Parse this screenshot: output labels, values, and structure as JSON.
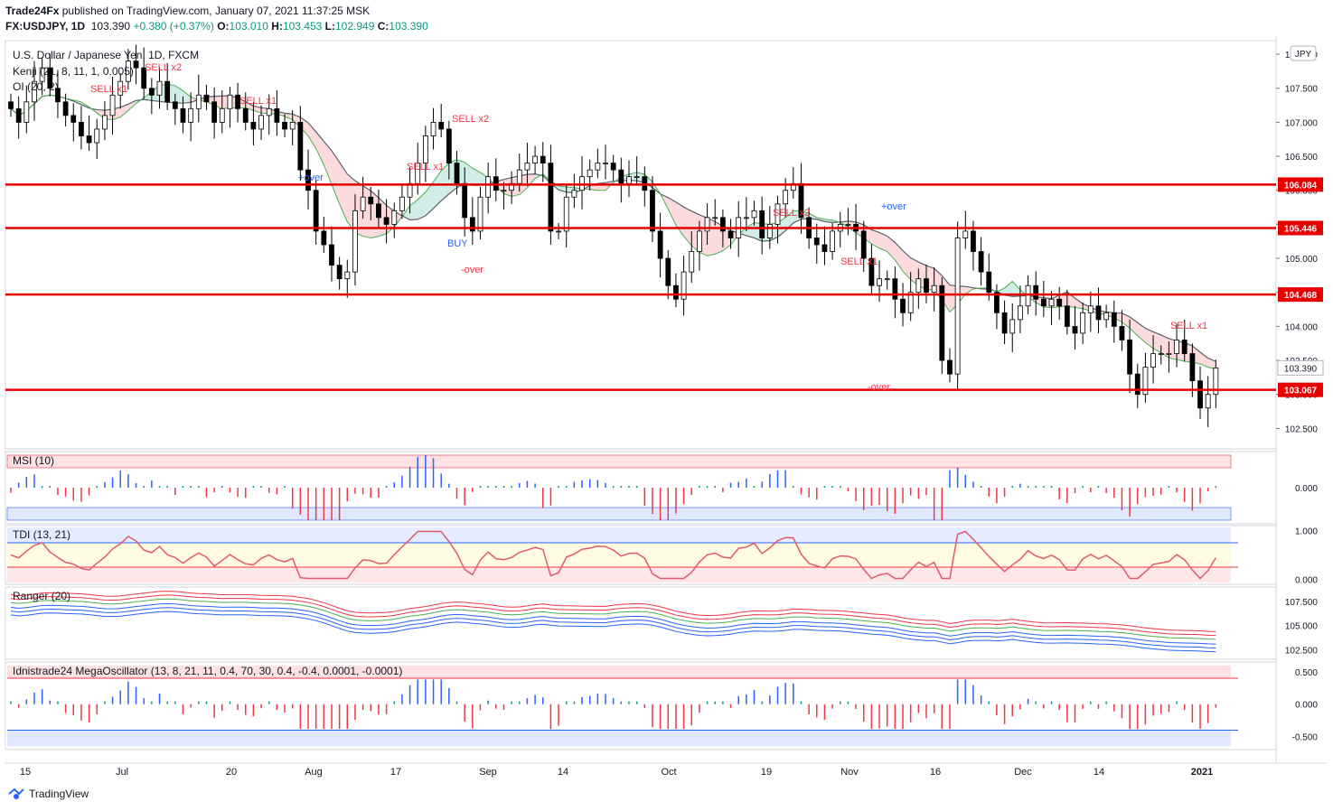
{
  "header": {
    "publisher": "Trade24Fx",
    "published_text": "published on TradingView.com, January 07, 2021 11:37:25 MSK",
    "symbol": "FX:USDJPY, 1D",
    "last": "103.390",
    "change": "+0.380 (+0.37%)",
    "o_label": "O:",
    "o": "103.010",
    "h_label": "H:",
    "h": "103.453",
    "l_label": "L:",
    "l": "102.949",
    "c_label": "C:",
    "c": "103.390"
  },
  "main_pane": {
    "title": "U.S. Dollar / Japanese Yen, 1D, FXCM",
    "ind1": "Kenji (21, 8, 11, 1, 0.005)",
    "ind2": "OI (20, 2)",
    "currency_badge": "JPY"
  },
  "footer": {
    "brand": "TradingView"
  },
  "chart_data": [
    {
      "type": "candlestick",
      "title": "U.S. Dollar / Japanese Yen, 1D, FXCM",
      "ylim": [
        102.2,
        108.2
      ],
      "y_ticks": [
        "108.000",
        "107.500",
        "107.000",
        "106.500",
        "106.000",
        "105.500",
        "105.000",
        "104.500",
        "104.000",
        "103.500",
        "103.000",
        "102.500"
      ],
      "x_ticks": [
        "15",
        "Jul",
        "20",
        "Aug",
        "17",
        "Sep",
        "14",
        "Oct",
        "19",
        "Nov",
        "16",
        "Dec",
        "14",
        "2021"
      ],
      "last_price": "103.390",
      "horizontal_levels": [
        {
          "value": 106.084,
          "label": "106.084",
          "color": "#e60000"
        },
        {
          "value": 105.446,
          "label": "105.446",
          "color": "#e60000"
        },
        {
          "value": 104.468,
          "label": "104.468",
          "color": "#e60000"
        },
        {
          "value": 103.067,
          "label": "103.067",
          "color": "#e60000"
        }
      ],
      "close_series": [
        107.2,
        107.0,
        107.3,
        107.6,
        107.8,
        107.5,
        107.3,
        107.1,
        107.0,
        106.8,
        106.7,
        106.9,
        107.1,
        107.4,
        107.6,
        107.9,
        107.8,
        107.5,
        107.4,
        107.6,
        107.3,
        107.2,
        107.0,
        107.2,
        107.4,
        107.3,
        107.0,
        107.2,
        107.4,
        107.2,
        107.0,
        106.9,
        107.1,
        107.2,
        107.0,
        106.9,
        107.0,
        106.3,
        106.0,
        105.4,
        105.2,
        104.9,
        104.7,
        104.8,
        105.7,
        105.9,
        105.8,
        105.6,
        105.5,
        105.7,
        105.9,
        106.1,
        106.4,
        106.8,
        107.0,
        106.9,
        106.4,
        106.1,
        105.6,
        105.4,
        105.9,
        106.2,
        106.0,
        106.0,
        106.1,
        106.3,
        106.4,
        106.5,
        106.4,
        105.4,
        105.4,
        105.9,
        106.0,
        106.2,
        106.3,
        106.4,
        106.4,
        106.3,
        106.1,
        106.2,
        106.2,
        106.0,
        105.4,
        105.0,
        104.6,
        104.4,
        104.8,
        105.1,
        105.4,
        105.6,
        105.6,
        105.4,
        105.3,
        105.6,
        105.6,
        105.7,
        105.3,
        105.5,
        105.8,
        106.0,
        106.1,
        105.6,
        105.3,
        105.2,
        105.1,
        105.4,
        105.5,
        105.5,
        105.4,
        105.0,
        104.6,
        104.7,
        104.7,
        104.4,
        104.2,
        104.5,
        104.7,
        104.5,
        104.6,
        103.5,
        103.3,
        105.3,
        105.4,
        105.1,
        104.8,
        104.5,
        104.2,
        103.9,
        104.1,
        104.3,
        104.6,
        104.4,
        104.3,
        104.4,
        104.3,
        104.0,
        103.9,
        104.2,
        104.3,
        104.1,
        104.2,
        104.0,
        103.8,
        103.3,
        103.0,
        103.4,
        103.6,
        103.6,
        103.6,
        103.8,
        103.6,
        103.2,
        102.8,
        103.0,
        103.39
      ],
      "signal_labels": [
        "SELL x1",
        "SELL x2",
        "SELL x1",
        "SELL x2",
        "SELL x1",
        "+over",
        "-over",
        "BUY",
        "SELL x2",
        "SELL x1",
        "+over",
        "-over",
        "SELL x1"
      ]
    },
    {
      "type": "histogram",
      "title": "MSI (10)",
      "ylim": [
        -0.5,
        0.5
      ],
      "y_ticks": [
        "0.000"
      ]
    },
    {
      "type": "line",
      "title": "TDI (13, 21)",
      "ylim": [
        -0.1,
        1.1
      ],
      "y_ticks": [
        "1.000",
        "0.000"
      ]
    },
    {
      "type": "line",
      "title": "Ranger (20)",
      "ylim": [
        101.5,
        109.0
      ],
      "y_ticks": [
        "107.500",
        "105.000",
        "102.500"
      ]
    },
    {
      "type": "histogram",
      "title": "Idnistrade24 MegaOscillator (13, 8, 21, 11, 0.4, 70, 30, 0.4, -0.4, 0.0001, -0.0001)",
      "ylim": [
        -0.7,
        0.65
      ],
      "y_ticks": [
        "0.500",
        "0.000",
        "-0.500"
      ]
    }
  ],
  "colors": {
    "up": "#ffffff",
    "down": "#000000",
    "level": "#e60000",
    "bull": "#089981",
    "bear": "#f23645",
    "blue": "#2962ff"
  }
}
